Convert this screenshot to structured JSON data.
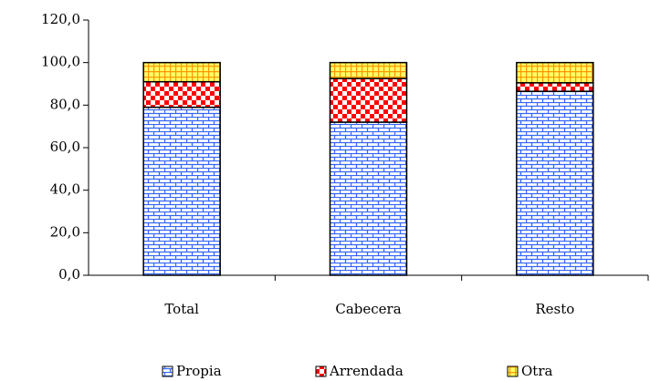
{
  "chart_data": {
    "type": "stacked_bar",
    "categories": [
      "Total",
      "Cabecera",
      "Resto"
    ],
    "series": [
      {
        "name": "Propia",
        "color": "#3366ff",
        "values": [
          79,
          72,
          86.5
        ]
      },
      {
        "name": "Arrendada",
        "color": "#ff0000",
        "values": [
          12,
          20.5,
          4
        ]
      },
      {
        "name": "Otra",
        "color": "#ff9900",
        "values": [
          9,
          7.5,
          9.5
        ]
      }
    ],
    "ylim": [
      0,
      120
    ],
    "yticks": [
      {
        "value": 0,
        "label": "0,0"
      },
      {
        "value": 20,
        "label": "20,0"
      },
      {
        "value": 40,
        "label": "40,0"
      },
      {
        "value": 60,
        "label": "60,0"
      },
      {
        "value": 80,
        "label": "80,0"
      },
      {
        "value": 100,
        "label": "100,0"
      },
      {
        "value": 120,
        "label": "120,0"
      }
    ],
    "legend": "bottom"
  }
}
